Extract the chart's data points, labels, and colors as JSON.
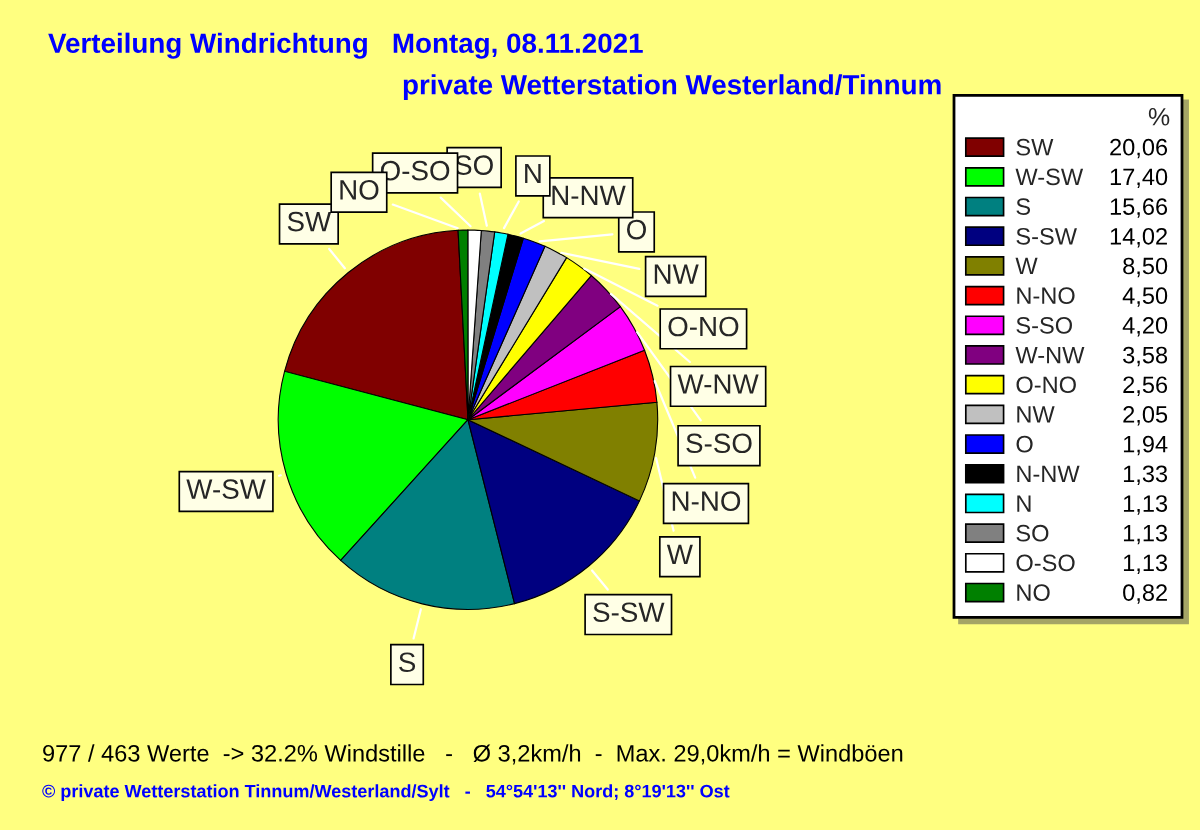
{
  "chart_data": {
    "type": "pie",
    "title": "Verteilung Windrichtung   Montag, 08.11.2021",
    "subtitle": "private Wetterstation Westerland/Tinnum",
    "categories": [
      "SW",
      "W-SW",
      "S",
      "S-SW",
      "W",
      "N-NO",
      "S-SO",
      "W-NW",
      "O-NO",
      "NW",
      "O",
      "N-NW",
      "N",
      "SO",
      "O-SO",
      "NO"
    ],
    "values": [
      20.06,
      17.4,
      15.66,
      14.02,
      8.5,
      4.5,
      4.2,
      3.58,
      2.56,
      2.05,
      1.94,
      1.33,
      1.13,
      1.13,
      1.13,
      0.82
    ],
    "value_labels": [
      "20,06",
      "17,40",
      "15,66",
      "14,02",
      "8,50",
      "4,50",
      "4,20",
      "3,58",
      "2,56",
      "2,05",
      "1,94",
      "1,33",
      "1,13",
      "1,13",
      "1,13",
      "0,82"
    ],
    "colors": [
      "#800000",
      "#00ff00",
      "#008080",
      "#000080",
      "#808000",
      "#ff0000",
      "#ff00ff",
      "#800080",
      "#ffff00",
      "#c0c0c0",
      "#0000ff",
      "#000000",
      "#00ffff",
      "#808080",
      "#ffffff",
      "#008000"
    ],
    "legend": "right",
    "legend_title": "%",
    "annotations": [
      "977 / 463 Werte  -> 32.2% Windstille   -   Ø 3,2km/h  -  Max. 29,0km/h = Windböen",
      "© private Wetterstation Tinnum/Westerland/Sylt   -   54°54'13'' Nord; 8°19'13'' Ost"
    ]
  }
}
